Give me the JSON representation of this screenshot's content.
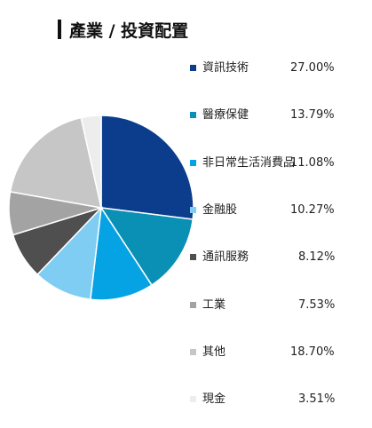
{
  "title": "產業 / 投資配置",
  "chart_data": {
    "type": "pie",
    "title": "產業 / 投資配置",
    "slices": [
      {
        "label": "資訊技術",
        "value": 27.0,
        "display": "27.00%",
        "color": "#0b3d8c"
      },
      {
        "label": "醫療保健",
        "value": 13.79,
        "display": "13.79%",
        "color": "#0a8fb5"
      },
      {
        "label": "非日常生活消費品",
        "value": 11.08,
        "display": "11.08%",
        "color": "#06a3e4"
      },
      {
        "label": "金融股",
        "value": 10.27,
        "display": "10.27%",
        "color": "#80cdf4"
      },
      {
        "label": "通訊服務",
        "value": 8.12,
        "display": "8.12%",
        "color": "#4f4f4f"
      },
      {
        "label": "工業",
        "value": 7.53,
        "display": "7.53%",
        "color": "#a3a3a3"
      },
      {
        "label": "其他",
        "value": 18.7,
        "display": "18.70%",
        "color": "#c6c6c6"
      },
      {
        "label": "現金",
        "value": 3.51,
        "display": "3.51%",
        "color": "#ededed"
      }
    ]
  }
}
